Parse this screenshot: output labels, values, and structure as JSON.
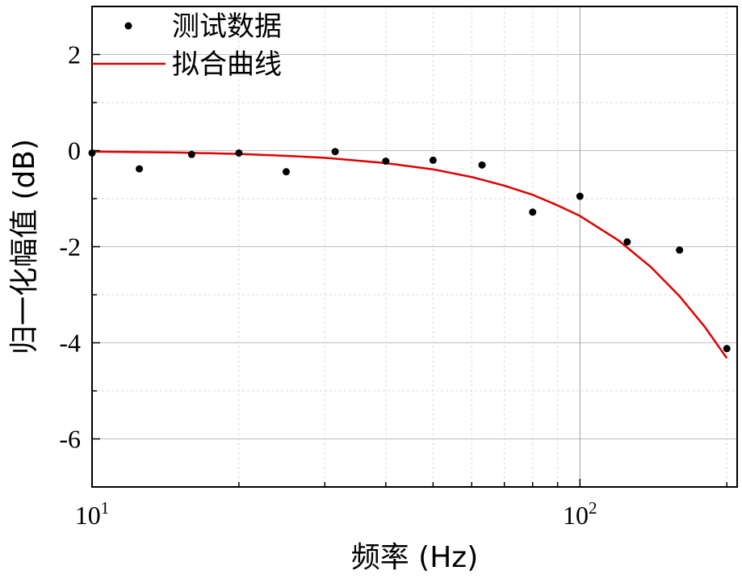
{
  "chart_data": {
    "type": "scatter",
    "xscale": "log",
    "xlim": [
      10,
      210
    ],
    "ylim": [
      -7,
      3
    ],
    "grid": true,
    "legend_placement": "top-left",
    "xlabel": "频率 (Hz)",
    "ylabel": "归一化幅值 (dB)",
    "x_tick_labels": [
      {
        "value": 10,
        "base": "10",
        "exp": "1"
      },
      {
        "value": 100,
        "base": "10",
        "exp": "2"
      }
    ],
    "y_ticks": [
      {
        "value": 2,
        "label": "2"
      },
      {
        "value": 0,
        "label": "0"
      },
      {
        "value": -2,
        "label": "-2"
      },
      {
        "value": -4,
        "label": "-4"
      },
      {
        "value": -6,
        "label": "-6"
      }
    ],
    "series": [
      {
        "name": "测试数据",
        "kind": "scatter",
        "color": "#000000",
        "x": [
          10,
          12.5,
          16,
          20,
          25,
          31.5,
          40,
          50,
          63,
          80,
          100,
          125,
          160,
          200
        ],
        "y": [
          -0.05,
          -0.38,
          -0.08,
          -0.05,
          -0.44,
          -0.02,
          -0.22,
          -0.2,
          -0.3,
          -1.28,
          -0.95,
          -1.9,
          -2.07,
          -4.12
        ]
      },
      {
        "name": "拟合曲线",
        "kind": "line",
        "color": "#e00000",
        "x": [
          10,
          15,
          20,
          25,
          30,
          40,
          50,
          60,
          70,
          80,
          90,
          100,
          120,
          140,
          160,
          180,
          200
        ],
        "y": [
          -0.02,
          -0.04,
          -0.07,
          -0.11,
          -0.15,
          -0.26,
          -0.39,
          -0.55,
          -0.73,
          -0.92,
          -1.14,
          -1.36,
          -1.87,
          -2.43,
          -3.03,
          -3.66,
          -4.32
        ]
      }
    ]
  }
}
